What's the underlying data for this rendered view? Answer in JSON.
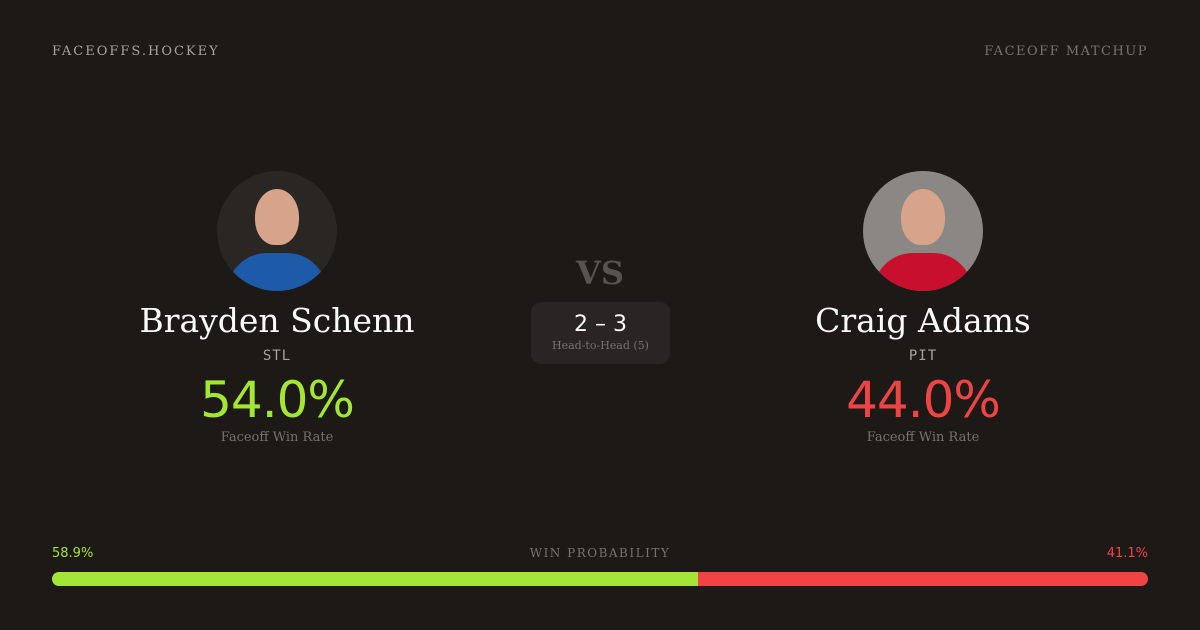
{
  "brand": "FACEOFFS.HOCKEY",
  "page_kind": "FACEOFF MATCHUP",
  "colors": {
    "home": "#a3e635",
    "away": "#ef4444",
    "background": "#1c1917"
  },
  "players": [
    {
      "name": "Brayden Schenn",
      "team": "STL",
      "win_rate": "54.0%",
      "win_rate_label": "Faceoff Win Rate",
      "avatar": "player-headshot",
      "jersey_color": "#1d5ba8"
    },
    {
      "name": "Craig Adams",
      "team": "PIT",
      "win_rate": "44.0%",
      "win_rate_label": "Faceoff Win Rate",
      "avatar": "player-headshot",
      "jersey_color": "#c8102e"
    }
  ],
  "vs": "VS",
  "head_to_head": {
    "score": "2 – 3",
    "label": "Head-to-Head (5)"
  },
  "win_probability": {
    "label": "WIN PROBABILITY",
    "left": "58.9%",
    "right": "41.1%",
    "left_fraction": 0.589
  }
}
